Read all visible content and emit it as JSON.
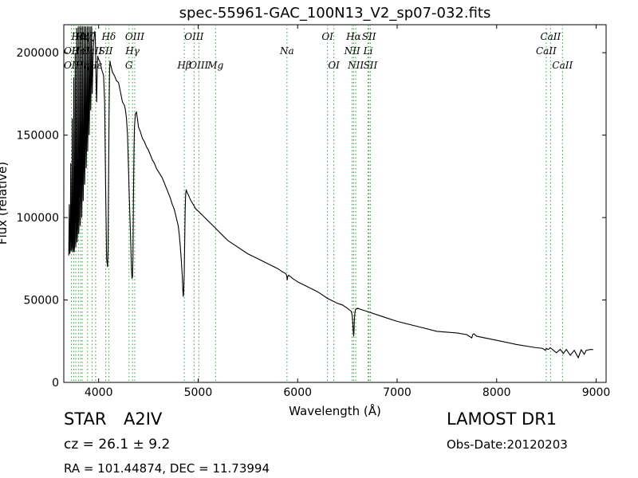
{
  "chart_data": {
    "type": "line",
    "title": "spec-55961-GAC_100N13_V2_sp07-032.fits",
    "xlabel": "Wavelength (Å)",
    "ylabel": "Flux (relative)",
    "xlim": [
      3650,
      9100
    ],
    "ylim": [
      0,
      217000
    ],
    "xticks": [
      4000,
      5000,
      6000,
      7000,
      8000,
      9000
    ],
    "yticks": [
      0,
      50000,
      100000,
      150000,
      200000
    ],
    "grid": false,
    "series": [
      {
        "color": "#000000",
        "x": [
          3700,
          3705,
          3710,
          3715,
          3720,
          3725,
          3730,
          3735,
          3740,
          3745,
          3750,
          3755,
          3760,
          3765,
          3770,
          3775,
          3780,
          3785,
          3790,
          3795,
          3800,
          3805,
          3810,
          3815,
          3820,
          3825,
          3830,
          3835,
          3840,
          3845,
          3850,
          3855,
          3860,
          3865,
          3870,
          3875,
          3880,
          3885,
          3890,
          3895,
          3900,
          3905,
          3910,
          3915,
          3920,
          3925,
          3930,
          3935,
          3940,
          3945,
          3950,
          3955,
          3960,
          3965,
          3970,
          3975,
          3980,
          3985,
          3990,
          4000,
          4010,
          4020,
          4030,
          4040,
          4050,
          4060,
          4070,
          4080,
          4090,
          4095,
          4100,
          4105,
          4110,
          4115,
          4120,
          4140,
          4160,
          4180,
          4200,
          4220,
          4240,
          4260,
          4270,
          4280,
          4290,
          4300,
          4310,
          4320,
          4330,
          4335,
          4340,
          4345,
          4350,
          4355,
          4360,
          4370,
          4380,
          4390,
          4400,
          4420,
          4440,
          4460,
          4480,
          4500,
          4520,
          4540,
          4560,
          4580,
          4600,
          4620,
          4640,
          4660,
          4680,
          4700,
          4720,
          4740,
          4760,
          4780,
          4800,
          4810,
          4820,
          4830,
          4840,
          4845,
          4850,
          4855,
          4860,
          4865,
          4870,
          4875,
          4880,
          4890,
          4900,
          4920,
          4940,
          4960,
          4980,
          5000,
          5050,
          5100,
          5150,
          5200,
          5250,
          5300,
          5400,
          5500,
          5600,
          5700,
          5800,
          5850,
          5880,
          5890,
          5895,
          5900,
          5910,
          5950,
          6000,
          6100,
          6200,
          6300,
          6400,
          6450,
          6500,
          6520,
          6540,
          6550,
          6555,
          6560,
          6563,
          6566,
          6570,
          6575,
          6580,
          6600,
          6650,
          6700,
          6800,
          6900,
          7000,
          7200,
          7400,
          7600,
          7700,
          7750,
          7760,
          7770,
          7800,
          8000,
          8200,
          8400,
          8450,
          8470,
          8490,
          8500,
          8520,
          8540,
          8560,
          8600,
          8640,
          8670,
          8700,
          8740,
          8780,
          8820,
          8850,
          8880,
          8900,
          8950,
          8970
        ],
        "y": [
          77000,
          108000,
          78000,
          80000,
          133000,
          80000,
          82000,
          160000,
          79000,
          81000,
          185000,
          79000,
          85000,
          200000,
          82000,
          90000,
          215000,
          85000,
          95000,
          216000,
          90000,
          100000,
          216000,
          95000,
          110000,
          216000,
          100000,
          120000,
          216000,
          110000,
          130000,
          216000,
          120000,
          140000,
          216000,
          130000,
          150000,
          216000,
          140000,
          160000,
          216000,
          150000,
          170000,
          216000,
          165000,
          180000,
          216000,
          175000,
          186000,
          200000,
          206000,
          210000,
          213000,
          212000,
          200000,
          180000,
          170000,
          186000,
          198000,
          196000,
          195000,
          193000,
          190000,
          188000,
          186000,
          170000,
          120000,
          75000,
          70000,
          80000,
          120000,
          165000,
          190000,
          195000,
          193000,
          188000,
          186000,
          183000,
          182000,
          176000,
          170000,
          168000,
          165000,
          160000,
          150000,
          130000,
          110000,
          90000,
          70000,
          63000,
          64000,
          75000,
          110000,
          140000,
          155000,
          163000,
          164000,
          160000,
          155000,
          152000,
          148000,
          146000,
          143000,
          141000,
          138000,
          135000,
          133000,
          130000,
          128000,
          126000,
          124000,
          121000,
          118000,
          115000,
          112000,
          108000,
          105000,
          100000,
          95000,
          90000,
          83000,
          75000,
          65000,
          58000,
          52000,
          55000,
          66000,
          85000,
          105000,
          114000,
          117000,
          115000,
          114000,
          111000,
          109000,
          107000,
          105000,
          104000,
          101000,
          98000,
          95000,
          92000,
          89000,
          86000,
          82000,
          78000,
          75000,
          72000,
          69000,
          67000,
          66000,
          65000,
          62000,
          64000,
          65000,
          63000,
          61000,
          58000,
          55000,
          51000,
          48000,
          47000,
          45000,
          44000,
          43000,
          40000,
          35000,
          30000,
          28000,
          30000,
          37000,
          42000,
          44000,
          45000,
          44000,
          43000,
          41000,
          39000,
          37000,
          34000,
          31000,
          30000,
          29000,
          27000,
          29000,
          29500,
          28000,
          25500,
          23000,
          21000,
          20800,
          20300,
          19500,
          20500,
          20000,
          21000,
          20000,
          18000,
          20000,
          17500,
          20000,
          16500,
          19500,
          15000,
          19800,
          17000,
          19500,
          20000,
          19800
        ]
      }
    ],
    "spectral_lines": [
      {
        "label": "Hθ",
        "x": 3797,
        "row": 1
      },
      {
        "label": "Hη",
        "x": 3835,
        "row": 1
      },
      {
        "label": "Hζ",
        "x": 3889,
        "row": 1
      },
      {
        "label": "Hδ",
        "x": 4102,
        "row": 1
      },
      {
        "label": "OIII",
        "x": 4363,
        "row": 1
      },
      {
        "label": "OIII",
        "x": 4959,
        "row": 1
      },
      {
        "label": "OI",
        "x": 6300,
        "row": 1
      },
      {
        "label": "Hα",
        "x": 6563,
        "row": 1
      },
      {
        "label": "SII",
        "x": 6717,
        "row": 1
      },
      {
        "label": "CaII",
        "x": 8542,
        "row": 1
      },
      {
        "label": "OII",
        "x": 3727,
        "row": 2
      },
      {
        "label": "HeI",
        "x": 3819,
        "row": 2
      },
      {
        "label": "CaII",
        "x": 3934,
        "row": 2
      },
      {
        "label": "SII",
        "x": 4072,
        "row": 2
      },
      {
        "label": "Hγ",
        "x": 4340,
        "row": 2
      },
      {
        "label": "Na",
        "x": 5893,
        "row": 2
      },
      {
        "label": "NII",
        "x": 6548,
        "row": 2
      },
      {
        "label": "Li",
        "x": 6708,
        "row": 2
      },
      {
        "label": "CaII",
        "x": 8498,
        "row": 2
      },
      {
        "label": "OII",
        "x": 3727,
        "row": 3
      },
      {
        "label": "Hε",
        "x": 3970,
        "row": 3
      },
      {
        "label": "Hη",
        "x": 3835,
        "row": 3
      },
      {
        "label": "G",
        "x": 4305,
        "row": 3
      },
      {
        "label": "Hβ",
        "x": 4861,
        "row": 3
      },
      {
        "label": "OIII",
        "x": 5007,
        "row": 3
      },
      {
        "label": "Mg",
        "x": 5175,
        "row": 3
      },
      {
        "label": "OI",
        "x": 6364,
        "row": 3
      },
      {
        "label": "NII",
        "x": 6584,
        "row": 3
      },
      {
        "label": "SII",
        "x": 6731,
        "row": 3
      },
      {
        "label": "CaII",
        "x": 8662,
        "row": 3
      }
    ],
    "extra_lines_x": [
      3750,
      3771,
      3889,
      3970,
      4340,
      5007,
      5893,
      6300,
      6364,
      6548,
      6563,
      6584,
      6708,
      6717,
      6731,
      8498,
      8542,
      8662
    ]
  },
  "info": {
    "object_type": "STAR",
    "object_class": "A2IV",
    "cz_prefix": "cz = 26.1",
    "cz_pm": "±",
    "cz_err": "9.2",
    "radec": "RA = 101.44874, DEC = 11.73994",
    "survey": "LAMOST DR1",
    "obs_date": "Obs-Date:20120203"
  },
  "colors": {
    "spectrum": "#000000",
    "line_markers": "#2ca02c"
  }
}
